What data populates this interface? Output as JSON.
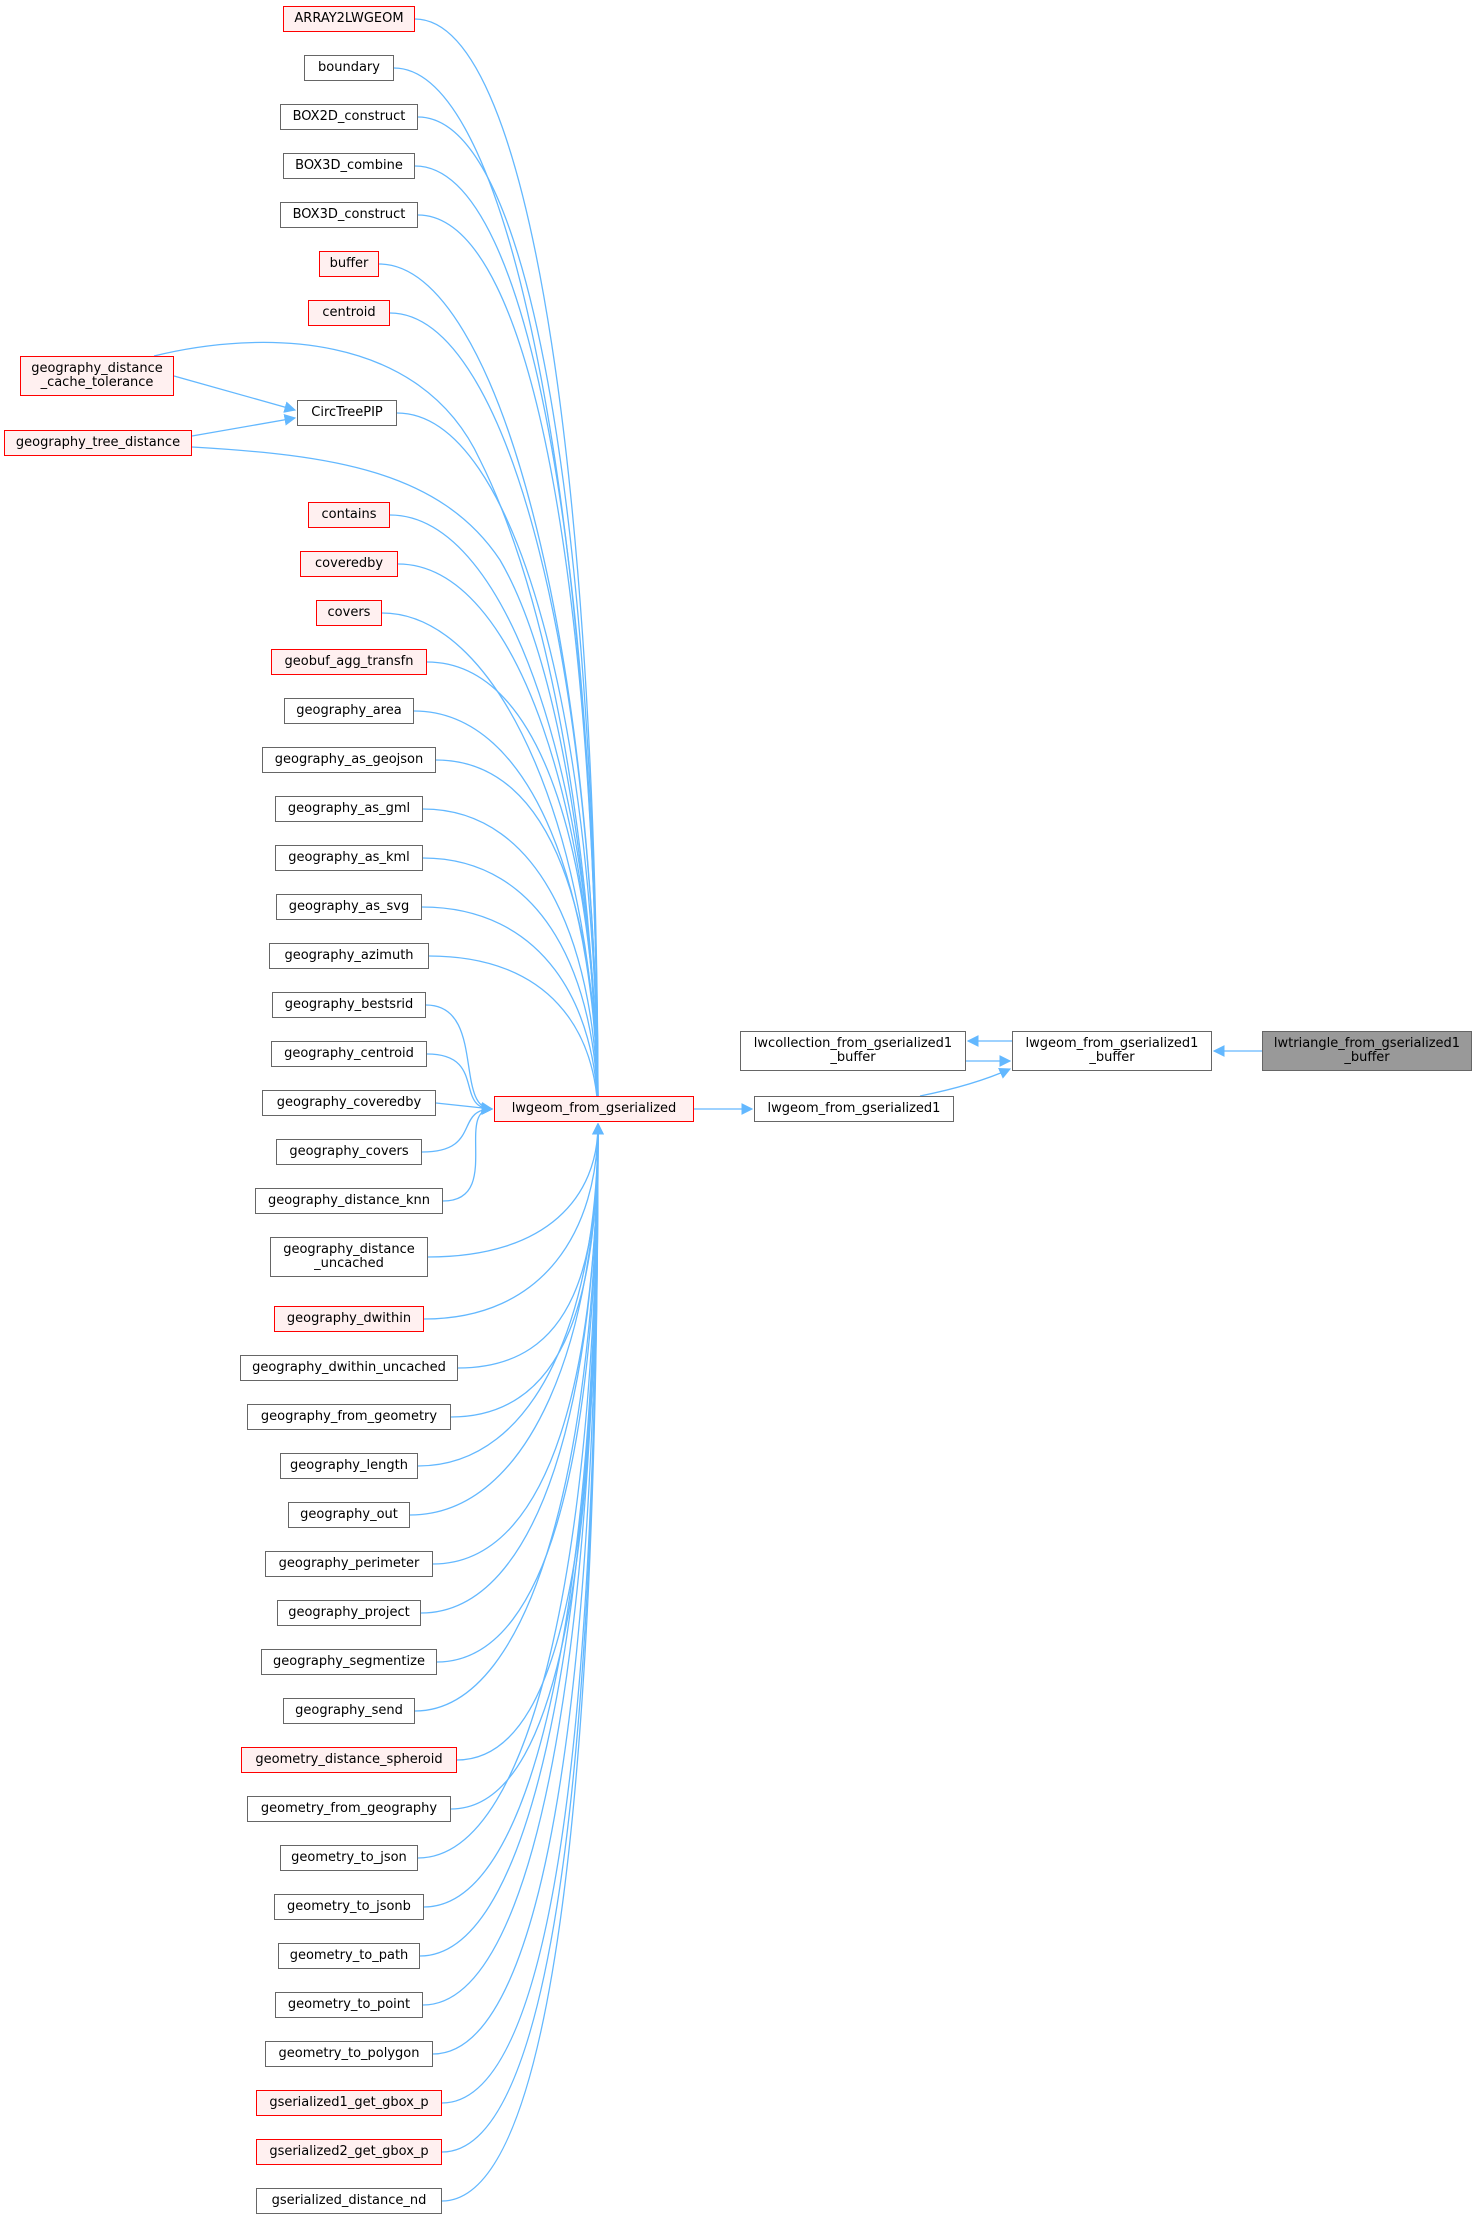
{
  "graph": {
    "root": "lwtriangle_from_gserialized1\n_buffer",
    "edge_color": "#63b8ff",
    "red_border": "#ff0000",
    "gray_border": "#666666",
    "root_fill": "#999999",
    "nodes": [
      {
        "id": "n1",
        "label": "lwtriangle_from_gserialized1\n_buffer",
        "style": "root"
      },
      {
        "id": "n2",
        "label": "lwgeom_from_gserialized1\n_buffer",
        "style": "gray"
      },
      {
        "id": "n3",
        "label": "lwcollection_from_gserialized1\n_buffer",
        "style": "gray"
      },
      {
        "id": "n4",
        "label": "lwgeom_from_gserialized1",
        "style": "gray"
      },
      {
        "id": "n5",
        "label": "lwgeom_from_gserialized",
        "style": "red"
      },
      {
        "id": "n6",
        "label": "ARRAY2LWGEOM",
        "style": "red"
      },
      {
        "id": "n7",
        "label": "boundary",
        "style": "gray"
      },
      {
        "id": "n8",
        "label": "BOX2D_construct",
        "style": "gray"
      },
      {
        "id": "n9",
        "label": "BOX3D_combine",
        "style": "gray"
      },
      {
        "id": "n10",
        "label": "BOX3D_construct",
        "style": "gray"
      },
      {
        "id": "n11",
        "label": "buffer",
        "style": "red"
      },
      {
        "id": "n12",
        "label": "centroid",
        "style": "red"
      },
      {
        "id": "n13",
        "label": "CircTreePIP",
        "style": "gray"
      },
      {
        "id": "n14",
        "label": "geography_distance\n_cache_tolerance",
        "style": "red"
      },
      {
        "id": "n15",
        "label": "geography_tree_distance",
        "style": "red"
      },
      {
        "id": "n16",
        "label": "contains",
        "style": "red"
      },
      {
        "id": "n17",
        "label": "coveredby",
        "style": "red"
      },
      {
        "id": "n18",
        "label": "covers",
        "style": "red"
      },
      {
        "id": "n19",
        "label": "geobuf_agg_transfn",
        "style": "red"
      },
      {
        "id": "n20",
        "label": "geography_area",
        "style": "gray"
      },
      {
        "id": "n21",
        "label": "geography_as_geojson",
        "style": "gray"
      },
      {
        "id": "n22",
        "label": "geography_as_gml",
        "style": "gray"
      },
      {
        "id": "n23",
        "label": "geography_as_kml",
        "style": "gray"
      },
      {
        "id": "n24",
        "label": "geography_as_svg",
        "style": "gray"
      },
      {
        "id": "n25",
        "label": "geography_azimuth",
        "style": "gray"
      },
      {
        "id": "n26",
        "label": "geography_bestsrid",
        "style": "gray"
      },
      {
        "id": "n27",
        "label": "geography_centroid",
        "style": "gray"
      },
      {
        "id": "n28",
        "label": "geography_coveredby",
        "style": "gray"
      },
      {
        "id": "n29",
        "label": "geography_covers",
        "style": "gray"
      },
      {
        "id": "n30",
        "label": "geography_distance_knn",
        "style": "gray"
      },
      {
        "id": "n31",
        "label": "geography_distance\n_uncached",
        "style": "gray"
      },
      {
        "id": "n32",
        "label": "geography_dwithin",
        "style": "red"
      },
      {
        "id": "n33",
        "label": "geography_dwithin_uncached",
        "style": "gray"
      },
      {
        "id": "n34",
        "label": "geography_from_geometry",
        "style": "gray"
      },
      {
        "id": "n35",
        "label": "geography_length",
        "style": "gray"
      },
      {
        "id": "n36",
        "label": "geography_out",
        "style": "gray"
      },
      {
        "id": "n37",
        "label": "geography_perimeter",
        "style": "gray"
      },
      {
        "id": "n38",
        "label": "geography_project",
        "style": "gray"
      },
      {
        "id": "n39",
        "label": "geography_segmentize",
        "style": "gray"
      },
      {
        "id": "n40",
        "label": "geography_send",
        "style": "gray"
      },
      {
        "id": "n41",
        "label": "geometry_distance_spheroid",
        "style": "red"
      },
      {
        "id": "n42",
        "label": "geometry_from_geography",
        "style": "gray"
      },
      {
        "id": "n43",
        "label": "geometry_to_json",
        "style": "gray"
      },
      {
        "id": "n44",
        "label": "geometry_to_jsonb",
        "style": "gray"
      },
      {
        "id": "n45",
        "label": "geometry_to_path",
        "style": "gray"
      },
      {
        "id": "n46",
        "label": "geometry_to_point",
        "style": "gray"
      },
      {
        "id": "n47",
        "label": "geometry_to_polygon",
        "style": "gray"
      },
      {
        "id": "n48",
        "label": "gserialized1_get_gbox_p",
        "style": "red"
      },
      {
        "id": "n49",
        "label": "gserialized2_get_gbox_p",
        "style": "red"
      },
      {
        "id": "n50",
        "label": "gserialized_distance_nd",
        "style": "gray"
      }
    ]
  }
}
